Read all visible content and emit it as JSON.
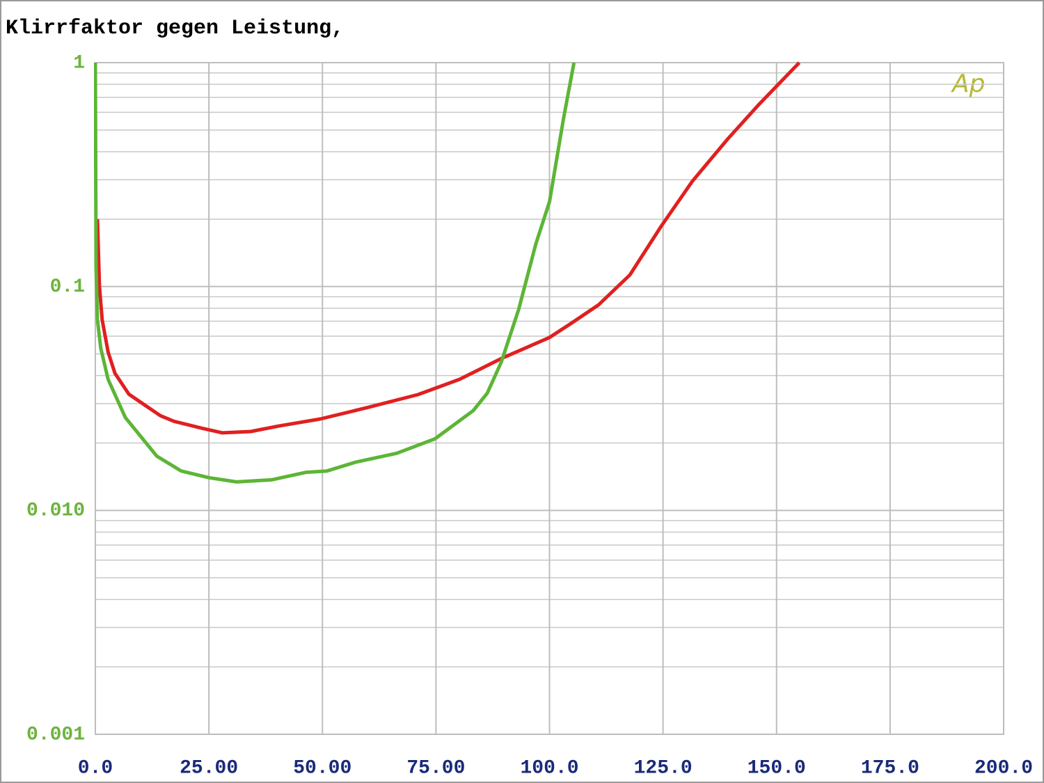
{
  "chart_data": {
    "type": "line",
    "title": "Klirrfaktor gegen Leistung,",
    "logo": "Ap",
    "log_scale_y": true,
    "grid": true,
    "xlim": [
      0,
      200
    ],
    "xticks": [
      {
        "value": 0,
        "label": "0.0"
      },
      {
        "value": 25,
        "label": "25.00"
      },
      {
        "value": 50,
        "label": "50.00"
      },
      {
        "value": 75,
        "label": "75.00"
      },
      {
        "value": 100,
        "label": "100.0"
      },
      {
        "value": 125,
        "label": "125.0"
      },
      {
        "value": 150,
        "label": "150.0"
      },
      {
        "value": 175,
        "label": "175.0"
      },
      {
        "value": 200,
        "label": "200.0"
      }
    ],
    "ylim": [
      0.001,
      1
    ],
    "yticks": [
      0.001,
      {
        "value": 0.01,
        "label": "0.010"
      },
      0.1,
      1
    ],
    "series": [
      {
        "color": "#e02020",
        "x": [
          0.46,
          0.9,
          1.5,
          2.8,
          4.3,
          7.4,
          14.3,
          17.3,
          23.4,
          28,
          34.2,
          40.3,
          49.5,
          60.2,
          71,
          80.2,
          89.4,
          100,
          104.7,
          110.8,
          117.7,
          124.6,
          131.5,
          139.2,
          146.1,
          155
        ],
        "values": [
          0.2,
          0.1,
          0.071,
          0.051,
          0.041,
          0.033,
          0.0265,
          0.025,
          0.0233,
          0.0222,
          0.0225,
          0.0238,
          0.0256,
          0.0289,
          0.0329,
          0.0385,
          0.0477,
          0.0592,
          0.0683,
          0.0828,
          0.1127,
          0.186,
          0.296,
          0.455,
          0.65,
          1.0
        ]
      },
      {
        "color": "#5db535",
        "x": [
          0,
          0.15,
          0.46,
          1.2,
          2.8,
          6.6,
          13.5,
          18.9,
          25,
          31.1,
          38.8,
          46.4,
          51,
          57.2,
          66.4,
          74.8,
          83.2,
          86.3,
          89.4,
          93.2,
          97,
          100,
          103.1,
          105.4
        ],
        "values": [
          1.0,
          0.121,
          0.071,
          0.053,
          0.0385,
          0.026,
          0.0175,
          0.015,
          0.014,
          0.0134,
          0.0137,
          0.0148,
          0.015,
          0.0164,
          0.018,
          0.0209,
          0.0279,
          0.0334,
          0.046,
          0.0788,
          0.155,
          0.239,
          0.564,
          1.0
        ]
      }
    ]
  }
}
